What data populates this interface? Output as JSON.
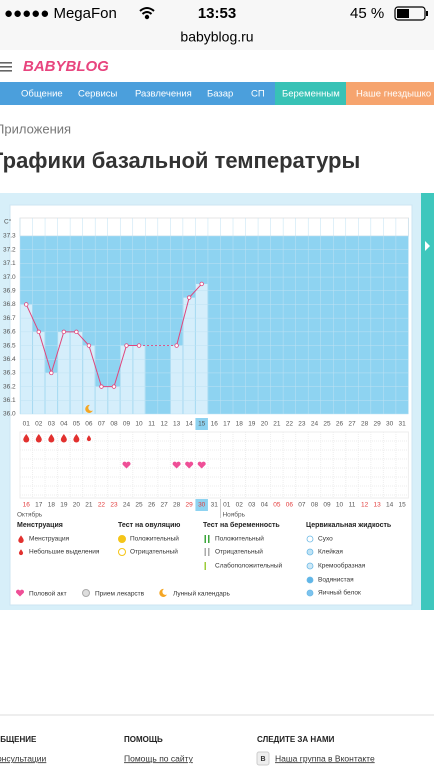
{
  "status_bar": {
    "carrier": "●●●●● MegaFon",
    "time": "13:53",
    "battery": "45 %"
  },
  "url": "babyblog.ru",
  "logo": "BABYBLOG",
  "nav": [
    "Общение",
    "Сервисы",
    "Развлечения",
    "Базар",
    "СП",
    "Беременным",
    "Наше гнездышко"
  ],
  "breadcrumb": "Приложения",
  "title": "Графики базальной температуры",
  "chart_data": {
    "type": "line",
    "y_unit_label": "C°",
    "categories": [
      "01",
      "02",
      "03",
      "04",
      "05",
      "06",
      "07",
      "08",
      "09",
      "10",
      "11",
      "12",
      "13",
      "14",
      "15",
      "16",
      "17",
      "18",
      "19",
      "20",
      "21",
      "22",
      "23",
      "24",
      "25",
      "26",
      "27",
      "28",
      "29",
      "30",
      "31"
    ],
    "values": [
      36.8,
      36.6,
      36.3,
      36.6,
      36.6,
      36.5,
      36.2,
      36.2,
      36.5,
      36.5,
      null,
      null,
      36.5,
      36.85,
      36.95,
      null,
      null,
      null,
      null,
      null,
      null,
      null,
      null,
      null,
      null,
      null,
      null,
      null,
      null,
      null,
      null
    ],
    "color": "#e0467c",
    "ylim": [
      36.0,
      37.3
    ],
    "yticks": [
      {
        "value": 36.0,
        "label": "36.0"
      },
      36.1,
      36.2,
      36.3,
      36.4,
      36.5,
      36.6,
      36.7,
      36.8,
      36.9,
      {
        "value": 37.0,
        "label": "37.0"
      },
      37.1,
      37.2,
      37.3
    ],
    "highlight": "15",
    "dates": [
      "16",
      "17",
      "18",
      "19",
      "20",
      "21",
      "22",
      "23",
      "24",
      "25",
      "26",
      "27",
      "28",
      "29",
      "30",
      "31",
      "01",
      "02",
      "03",
      "04",
      "05",
      "06",
      "07",
      "08",
      "09",
      "10",
      "11",
      "12",
      "13",
      "14",
      "15"
    ],
    "weekend": [
      true,
      false,
      false,
      false,
      false,
      false,
      true,
      true,
      false,
      false,
      false,
      false,
      false,
      true,
      true,
      false,
      false,
      false,
      false,
      false,
      true,
      true,
      false,
      false,
      false,
      false,
      false,
      true,
      true,
      false,
      false
    ],
    "months": [
      "Октябрь",
      "Ноябрь"
    ],
    "bleeding": [
      "heavy",
      "heavy",
      "heavy",
      "heavy",
      "heavy",
      "light",
      null,
      null,
      null,
      null,
      null,
      null,
      null,
      null,
      null,
      null,
      null,
      null,
      null,
      null,
      null,
      null,
      null,
      null,
      null,
      null,
      null,
      null,
      null,
      null,
      null
    ],
    "intercourse": [
      false,
      false,
      false,
      false,
      false,
      false,
      false,
      false,
      true,
      false,
      false,
      false,
      true,
      true,
      true,
      false,
      false,
      false,
      false,
      false,
      false,
      false,
      false,
      false,
      false,
      false,
      false,
      false,
      false,
      false,
      false
    ],
    "lunar": [
      false,
      false,
      false,
      false,
      false,
      true,
      false,
      false,
      false,
      false,
      false,
      false,
      false,
      false,
      false,
      false,
      false,
      false,
      false,
      false,
      false,
      false,
      false,
      false,
      false,
      false,
      false,
      false,
      false,
      false,
      false
    ]
  },
  "legend": {
    "groups": [
      {
        "title": "Менструация",
        "items": [
          "Менструация",
          "Небольшие выделения"
        ]
      },
      {
        "title": "Тест на овуляцию",
        "items": [
          "Положительный",
          "Отрицательный"
        ]
      },
      {
        "title": "Тест на беременность",
        "items": [
          "Положительный",
          "Отрицательный",
          "Слабоположительный"
        ]
      },
      {
        "title": "Цервикальная жидкость",
        "items": [
          "Сухо",
          "Клейкая",
          "Кремообразная",
          "Водянистая",
          "Яичный белок"
        ]
      }
    ],
    "extra": [
      "Половой акт",
      "Прием лекарств",
      "Лунный календарь"
    ]
  },
  "footer": {
    "columns": [
      {
        "title": "ОБЩЕНИЕ",
        "link": "Консультации"
      },
      {
        "title": "ПОМОЩЬ",
        "link": "Помощь по сайту"
      },
      {
        "title": "СЛЕДИТЕ ЗА НАМИ",
        "link": "Наша группа в Вконтакте"
      }
    ],
    "vk_icon": "B"
  }
}
